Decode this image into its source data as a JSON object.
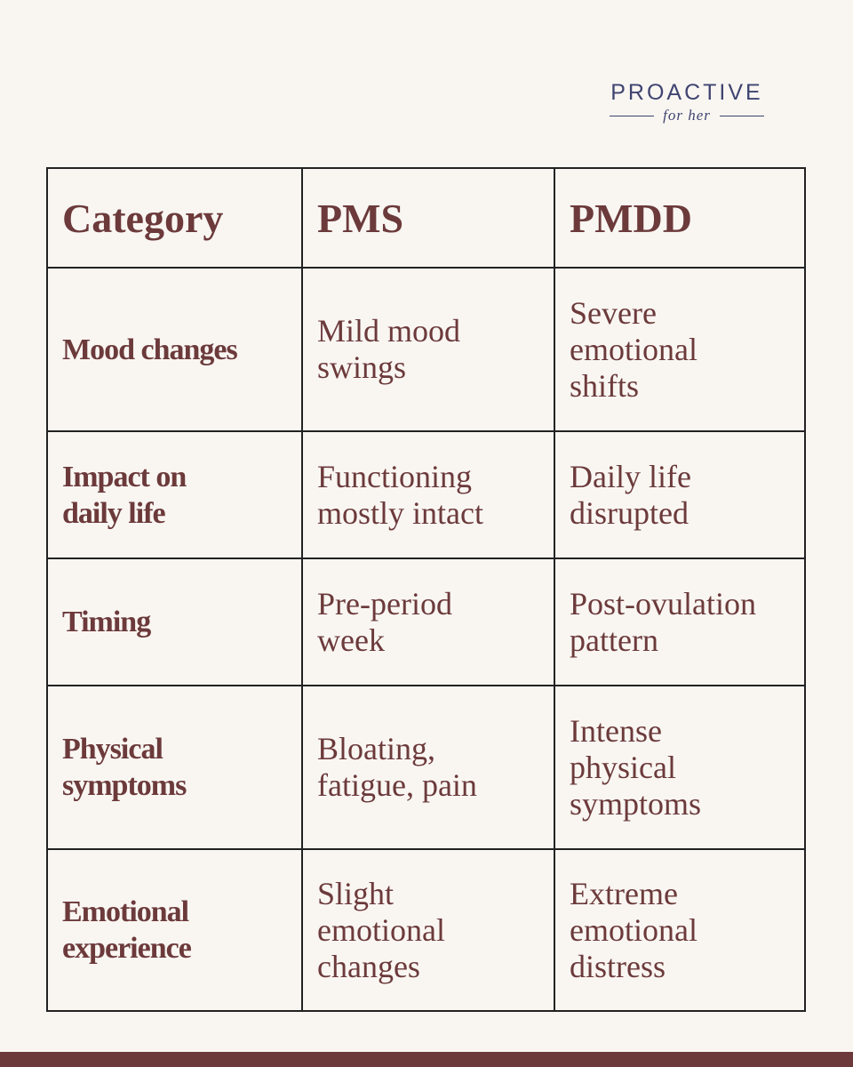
{
  "logo": {
    "name": "PROACTIVE",
    "tagline": "for her"
  },
  "table": {
    "header": [
      "Category",
      "PMS",
      "PMDD"
    ],
    "rows": [
      [
        [
          "Mood changes"
        ],
        [
          "Mild mood",
          "swings"
        ],
        [
          "Severe",
          "emotional",
          "shifts"
        ]
      ],
      [
        [
          "Impact on",
          "daily life"
        ],
        [
          "Functioning",
          "mostly intact"
        ],
        [
          "Daily life",
          "disrupted"
        ]
      ],
      [
        [
          "Timing"
        ],
        [
          "Pre-period",
          "week"
        ],
        [
          "Post-ovulation",
          "pattern"
        ]
      ],
      [
        [
          "Physical",
          "symptoms"
        ],
        [
          "Bloating,",
          "fatigue, pain"
        ],
        [
          "Intense",
          "physical",
          "symptoms"
        ]
      ],
      [
        [
          "Emotional",
          "experience"
        ],
        [
          "Slight",
          "emotional",
          "changes"
        ],
        [
          "Extreme",
          "emotional",
          "distress"
        ]
      ]
    ]
  }
}
